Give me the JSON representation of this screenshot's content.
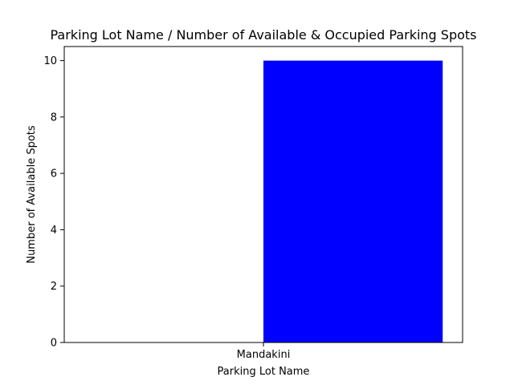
{
  "chart_data": {
    "type": "bar",
    "title": "Parking Lot Name / Number of Available  & Occupied Parking Spots",
    "xlabel": "Parking Lot Name",
    "ylabel": "Number of Available Spots",
    "categories": [
      "Mandakini"
    ],
    "series": [
      {
        "values": [
          10
        ],
        "color": "#0000ff",
        "align": "right-of-tick"
      }
    ],
    "xlim": [
      -1,
      1
    ],
    "ylim": [
      0,
      10.5
    ],
    "yticks": [
      0,
      2,
      4,
      6,
      8,
      10
    ],
    "grid": false,
    "legend": "none"
  }
}
